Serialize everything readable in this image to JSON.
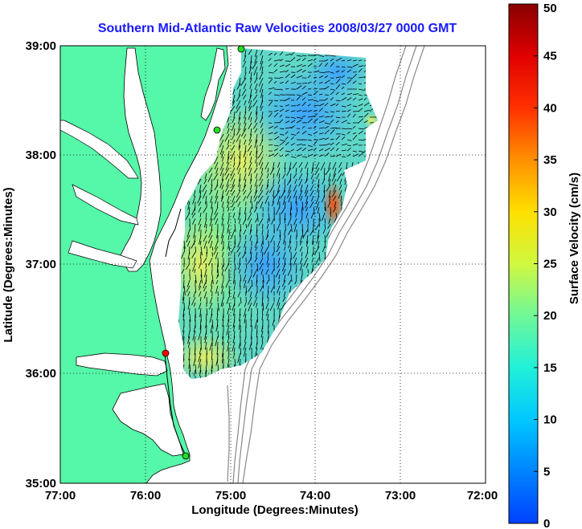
{
  "title": "Southern Mid-Atlantic Raw Velocities 2008/03/27 0000 GMT",
  "x_axis": {
    "label": "Longitude (Degrees:Minutes)",
    "ticks": [
      "77:00",
      "76:00",
      "75:00",
      "74:00",
      "73:00",
      "72:00"
    ]
  },
  "y_axis": {
    "label": "Latitude (Degrees:Minutes)",
    "ticks": [
      "39:00",
      "38:00",
      "37:00",
      "36:00",
      "35:00"
    ]
  },
  "colorbar": {
    "label": "Surface Velocity (cm/s)",
    "min": 0,
    "max": 50,
    "ticks": [
      "50",
      "45",
      "40",
      "35",
      "30",
      "25",
      "20",
      "15",
      "10",
      "5",
      "0"
    ]
  },
  "colors": {
    "land": "#55f7a8",
    "title": "#1a1aff",
    "station_green": "#22dd22",
    "station_red": "#ff0000"
  },
  "stations": [
    {
      "color": "green",
      "lon": -74.85,
      "lat": 38.95
    },
    {
      "color": "green",
      "lon": -75.15,
      "lat": 38.22
    },
    {
      "color": "red",
      "lon": -75.7,
      "lat": 36.18
    },
    {
      "color": "green",
      "lon": -75.5,
      "lat": 35.25
    }
  ]
}
